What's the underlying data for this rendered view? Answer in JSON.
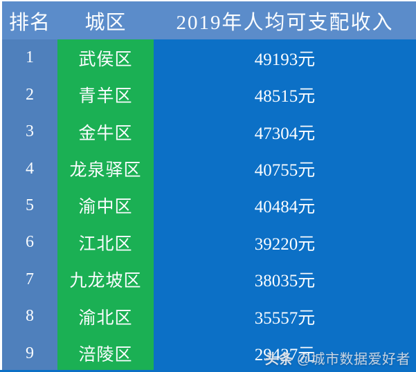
{
  "table": {
    "headers": [
      "排名",
      "城区",
      "2019年人均可支配收入"
    ],
    "rows": [
      {
        "rank": "1",
        "district": "武侯区",
        "income": "49193元"
      },
      {
        "rank": "2",
        "district": "青羊区",
        "income": "48515元"
      },
      {
        "rank": "3",
        "district": "金牛区",
        "income": "47304元"
      },
      {
        "rank": "4",
        "district": "龙泉驿区",
        "income": "40755元"
      },
      {
        "rank": "5",
        "district": "渝中区",
        "income": "40484元"
      },
      {
        "rank": "6",
        "district": "江北区",
        "income": "39220元"
      },
      {
        "rank": "7",
        "district": "九龙坡区",
        "income": "38035元"
      },
      {
        "rank": "8",
        "district": "渝北区",
        "income": "35557元"
      },
      {
        "rank": "9",
        "district": "涪陵区",
        "income": "29437元"
      }
    ]
  },
  "watermark": {
    "logo": "头条",
    "handle": "@城市数据爱好者"
  },
  "colors": {
    "header_blue": "#5b8cca",
    "rank_blue": "#4f80bc",
    "district_green": "#1bb054",
    "income_blue": "#0c70c6",
    "text": "#fbfdff"
  },
  "chart_data": {
    "type": "table",
    "title": "2019年人均可支配收入",
    "columns": [
      "排名",
      "城区",
      "2019年人均可支配收入"
    ],
    "categories": [
      "武侯区",
      "青羊区",
      "金牛区",
      "龙泉驿区",
      "渝中区",
      "江北区",
      "九龙坡区",
      "渝北区",
      "涪陵区"
    ],
    "values": [
      49193,
      48515,
      47304,
      40755,
      40484,
      39220,
      38035,
      35557,
      29437
    ],
    "unit": "元"
  }
}
